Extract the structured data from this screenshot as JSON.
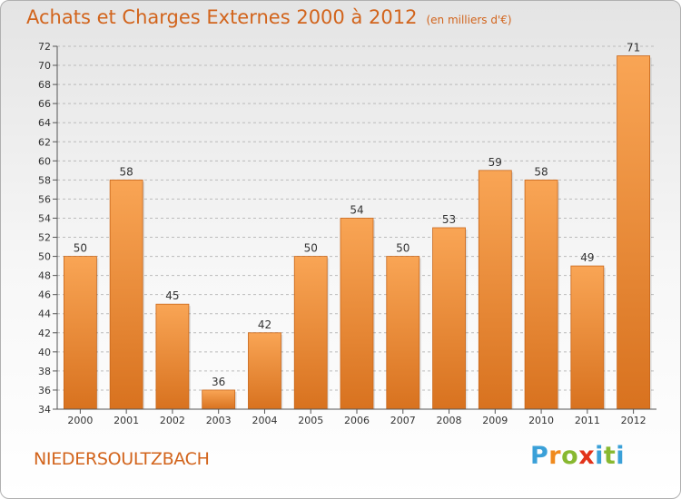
{
  "header": {
    "title": "Achats et Charges Externes 2000 à 2012",
    "unit": "(en milliers d'€)"
  },
  "footer": {
    "place": "NIEDERSOULTZBACH",
    "logo_letters": [
      "P",
      "r",
      "o",
      "x",
      "i",
      "t",
      "i"
    ]
  },
  "colors": {
    "accent": "#d2641c",
    "bar_top": "#f9a555",
    "bar_bottom": "#d8721f",
    "grid": "#bbbbbb",
    "axis": "#555555"
  },
  "chart_data": {
    "type": "bar",
    "title": "Achats et Charges Externes 2000 à 2012",
    "subtitle": "(en milliers d'€)",
    "categories": [
      "2000",
      "2001",
      "2002",
      "2003",
      "2004",
      "2005",
      "2006",
      "2007",
      "2008",
      "2009",
      "2010",
      "2011",
      "2012"
    ],
    "values": [
      50,
      58,
      45,
      36,
      42,
      50,
      54,
      50,
      53,
      59,
      58,
      49,
      71
    ],
    "data_labels": [
      "50",
      "58",
      "45",
      "36",
      "42",
      "50",
      "54",
      "50",
      "53",
      "59",
      "58",
      "49",
      "71"
    ],
    "ylim": [
      34,
      72
    ],
    "yticks": [
      34,
      36,
      38,
      40,
      42,
      44,
      46,
      48,
      50,
      52,
      54,
      56,
      58,
      60,
      62,
      64,
      66,
      68,
      70,
      72
    ],
    "grid": "horizontal dashed",
    "xlabel": "",
    "ylabel": ""
  }
}
